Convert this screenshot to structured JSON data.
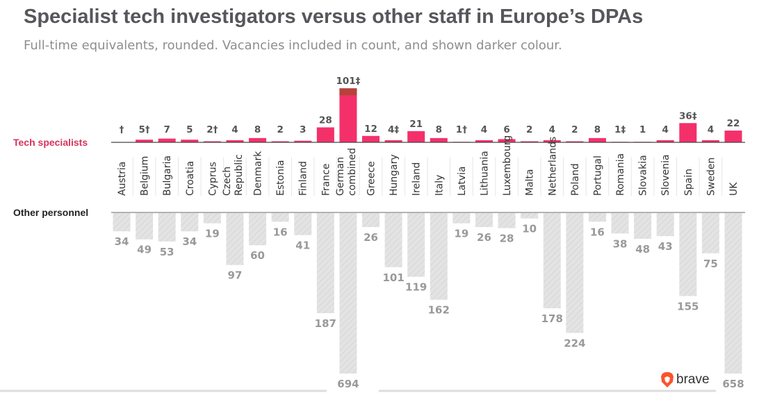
{
  "chart_data": {
    "type": "bar",
    "title": "Specialist tech investigators versus other staff in Europe’s DPAs",
    "subtitle": "Full-time equivalents, rounded. Vacancies included in count, and shown darker colour.",
    "categories": [
      "Austria",
      "Belgium",
      "Bulgaria",
      "Croatia",
      "Cyprus",
      "Czech Republic",
      "Denmark",
      "Estonia",
      "Finland",
      "France",
      "German combined",
      "Greece",
      "Hungary",
      "Ireland",
      "Italy",
      "Latvia",
      "Lithuania",
      "Luxembourg",
      "Malta",
      "Netherlands",
      "Poland",
      "Portugal",
      "Romania",
      "Slovakia",
      "Slovenia",
      "Spain",
      "Sweden",
      "UK"
    ],
    "series": [
      {
        "name": "Tech specialists",
        "values": [
          0,
          5,
          7,
          5,
          2,
          4,
          8,
          2,
          3,
          28,
          101,
          12,
          4,
          21,
          8,
          1,
          4,
          6,
          2,
          4,
          2,
          8,
          1,
          1,
          4,
          36,
          4,
          22
        ],
        "labels": [
          "†",
          "5†",
          "7",
          "5",
          "2†",
          "4",
          "8",
          "2",
          "3",
          "28",
          "101‡",
          "12",
          "4‡",
          "21",
          "8",
          "1†",
          "4",
          "6",
          "2",
          "4",
          "2",
          "8",
          "1‡",
          "1",
          "4",
          "36‡",
          "4",
          "22"
        ],
        "vacancies": [
          0,
          0,
          0,
          0,
          0,
          0,
          0,
          0,
          0,
          0,
          13,
          0,
          0,
          0,
          0,
          0,
          0,
          0,
          0,
          0,
          0,
          0,
          0,
          0,
          0,
          0,
          0,
          0
        ],
        "color": "#f4306b",
        "vacancy_color": "#b6423a"
      },
      {
        "name": "Other personnel",
        "values": [
          34,
          49,
          53,
          34,
          19,
          97,
          60,
          16,
          41,
          187,
          694,
          26,
          101,
          119,
          162,
          19,
          26,
          28,
          10,
          178,
          224,
          16,
          38,
          48,
          43,
          155,
          75,
          658
        ],
        "color": "#e2e2e2"
      }
    ],
    "label_color_tech": "#d6335c",
    "logo": "brave"
  }
}
